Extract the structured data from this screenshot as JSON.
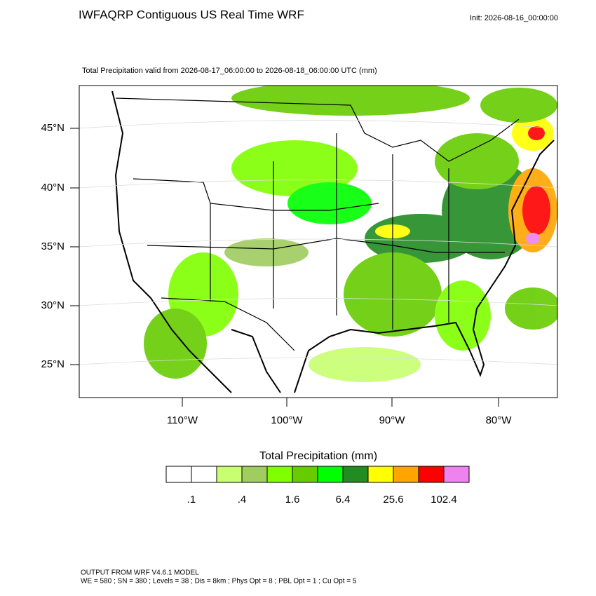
{
  "header": {
    "title": "IWFAQRP Contiguous US Real Time WRF",
    "init": "Init: 2026-08-16_00:00:00",
    "subtitle": "Total Precipitation valid from 2026-08-17_06:00:00 to 2026-08-18_06:00:00 UTC   (mm)"
  },
  "map": {
    "lat_labels": [
      "45°N",
      "40°N",
      "35°N",
      "30°N",
      "25°N"
    ],
    "lon_labels": [
      "110°W",
      "100°W",
      "90°W",
      "80°W"
    ]
  },
  "colorbar": {
    "title": "Total Precipitation  (mm)",
    "colors": [
      "#ffffff",
      "#ffffff",
      "#c8ff70",
      "#a0cc60",
      "#80ff00",
      "#66cc00",
      "#00ff00",
      "#228b22",
      "#ffff00",
      "#ffa500",
      "#ff0000",
      "#ee82ee"
    ],
    "labels": [
      ".1",
      ".4",
      "1.6",
      "6.4",
      "25.6",
      "102.4"
    ]
  },
  "footer": {
    "line1": "OUTPUT FROM WRF V4.6.1 MODEL",
    "line2": "WE = 580 ; SN = 380 ; Levels = 38 ; Dis = 8km ; Phys Opt = 8 ; PBL Opt = 1 ; Cu Opt = 5"
  }
}
